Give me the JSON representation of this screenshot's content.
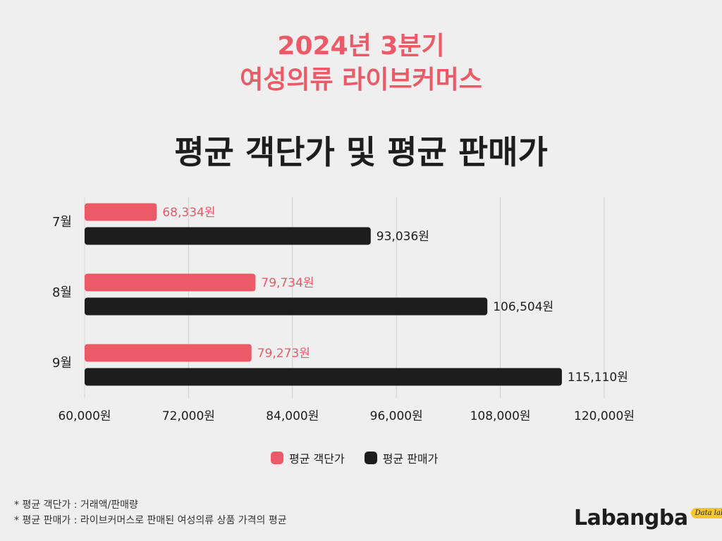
{
  "header": {
    "line1": "2024년 3분기",
    "line2": "여성의류 라이브커머스",
    "title": "평균 객단가 및 평균 판매가"
  },
  "colors": {
    "accent": "#ea5a67",
    "dark": "#1d1d1d",
    "background": "#efefef",
    "logo_badge": "#f7c531"
  },
  "chart_data": {
    "type": "bar",
    "orientation": "horizontal",
    "categories": [
      "7월",
      "8월",
      "9월"
    ],
    "series": [
      {
        "name": "평균 객단가",
        "color": "#ea5a67",
        "values": [
          68334,
          79734,
          79273
        ],
        "labels": [
          "68,334원",
          "79,734원",
          "79,273원"
        ]
      },
      {
        "name": "평균 판매가",
        "color": "#1d1d1d",
        "values": [
          93036,
          106504,
          115110
        ],
        "labels": [
          "93,036원",
          "106,504원",
          "115,110원"
        ]
      }
    ],
    "xlim": [
      60000,
      120000
    ],
    "x_ticks": [
      60000,
      72000,
      84000,
      96000,
      108000,
      120000
    ],
    "x_tick_labels": [
      "60,000원",
      "72,000원",
      "84,000원",
      "96,000원",
      "108,000원",
      "120,000원"
    ],
    "grid": true,
    "legend_position": "bottom-center"
  },
  "legend": {
    "item1": "평균 객단가",
    "item2": "평균 판매가"
  },
  "notes": {
    "line1": "* 평균 객단가 : 거래액/판매량",
    "line2": "* 평균 판매가 : 라이브커머스로 판매된 여성의류 상품 가격의 평균"
  },
  "logo": {
    "text": "Labangba",
    "badge": "Data lab"
  }
}
